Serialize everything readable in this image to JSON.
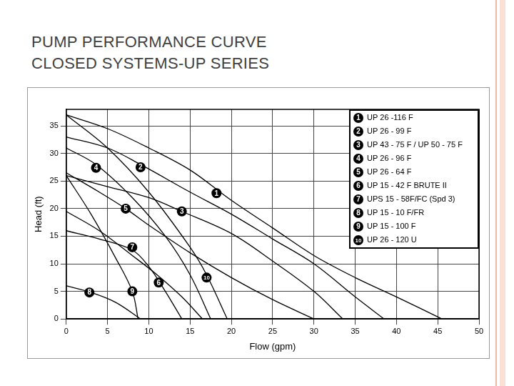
{
  "chart_data": {
    "type": "line",
    "title": [
      "PUMP PERFORMANCE CURVE",
      "CLOSED SYSTEMS-UP SERIES"
    ],
    "x_label": "Flow (gpm)",
    "y_label": "Head (ft)",
    "xlim": [
      0,
      50
    ],
    "xticks": [
      0,
      5,
      10,
      15,
      20,
      25,
      30,
      35,
      40,
      45,
      50
    ],
    "ylim": [
      0,
      38
    ],
    "yticks": [
      0,
      5,
      10,
      15,
      20,
      25,
      30,
      35
    ],
    "grid": true,
    "legend": "top-right",
    "color": "#000000",
    "series": [
      {
        "name": "UP 26 -116 F",
        "label": "1",
        "label_at": [
          18.2,
          22.8
        ],
        "x": [
          0,
          5,
          10,
          15,
          20,
          25,
          30,
          35,
          40,
          45.5
        ],
        "values": [
          37,
          34.5,
          31,
          27,
          21.5,
          16.5,
          11.5,
          7.5,
          4,
          0
        ]
      },
      {
        "name": "UP 26 - 99 F",
        "label": "2",
        "label_at": [
          9,
          27.5
        ],
        "x": [
          0,
          5,
          9,
          15,
          20,
          25,
          30,
          35,
          38.5
        ],
        "values": [
          33,
          31,
          28,
          23,
          19,
          14.5,
          10,
          4,
          0
        ]
      },
      {
        "name": "UP 43 - 75 F / UP 50 - 75 F",
        "label": "3",
        "label_at": [
          14,
          19.5
        ],
        "x": [
          0,
          5,
          10,
          14,
          20,
          25,
          30,
          33.5
        ],
        "values": [
          26,
          24,
          22,
          19.5,
          15.5,
          10.5,
          5,
          0
        ]
      },
      {
        "name": "UP 26 - 96 F",
        "label": "4",
        "label_at": [
          3.6,
          27.4
        ],
        "x": [
          0,
          3.6,
          8,
          12,
          15,
          17.5
        ],
        "values": [
          31,
          28,
          22,
          15,
          8,
          0
        ]
      },
      {
        "name": "UP 26 - 64 F",
        "label": "5",
        "label_at": [
          7.2,
          20
        ],
        "x": [
          0,
          4,
          7.2,
          10,
          15,
          20,
          25,
          30
        ],
        "values": [
          26.5,
          23,
          20,
          17,
          12,
          7.5,
          3.5,
          0
        ]
      },
      {
        "name": "UP 15 - 42 F BRUTE II",
        "label": "6",
        "label_at": [
          11.2,
          6.6
        ],
        "x": [
          0,
          4,
          8,
          11,
          14,
          16.5
        ],
        "values": [
          19.5,
          16,
          11.5,
          8,
          4,
          0
        ]
      },
      {
        "name": "UPS 15 - 58F/FC (Spd 3)",
        "label": "7",
        "label_at": [
          8,
          13
        ],
        "x": [
          0,
          4,
          8,
          10,
          12,
          14
        ],
        "values": [
          16,
          14.5,
          12.5,
          9.5,
          5,
          0
        ]
      },
      {
        "name": "UP 15 - 10 F/FR",
        "label": "8",
        "label_at": [
          2.8,
          4.8
        ],
        "x": [
          0,
          3,
          6,
          9
        ],
        "values": [
          6,
          4.8,
          3,
          0
        ]
      },
      {
        "name": "UP 15 - 100 F",
        "label": "9",
        "label_at": [
          8,
          5
        ],
        "x": [
          0,
          3,
          6,
          8,
          8.7
        ],
        "values": [
          26,
          19,
          11,
          5,
          0
        ]
      },
      {
        "name": "UP 26 - 120 U",
        "label": "10",
        "label_at": [
          17,
          7.5
        ],
        "x": [
          0,
          5,
          10,
          15,
          17,
          19.5
        ],
        "values": [
          37,
          31,
          23,
          13,
          8,
          0
        ]
      }
    ]
  }
}
